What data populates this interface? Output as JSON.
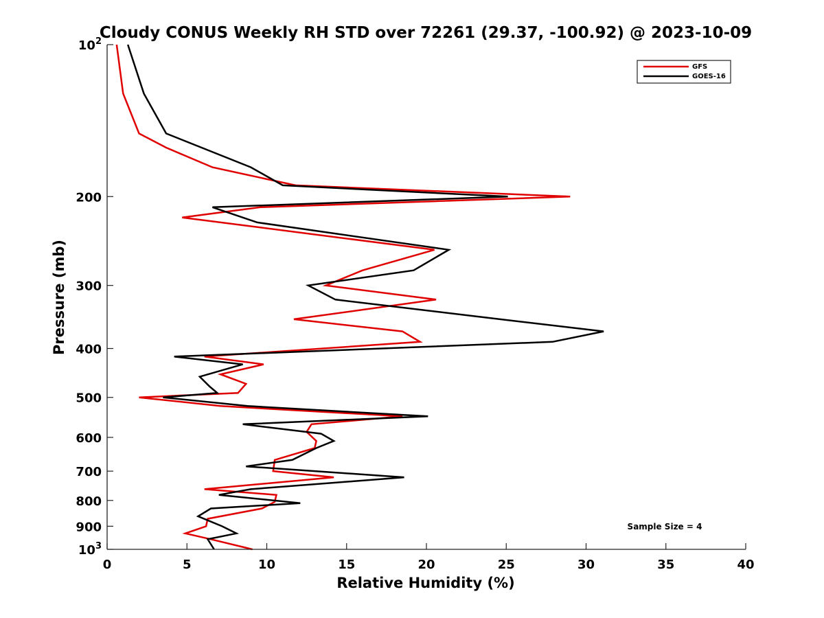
{
  "chart_data": {
    "type": "line",
    "title": "Cloudy CONUS Weekly RH STD over 72261 (29.37, -100.92) @ 2023-10-09",
    "xlabel": "Relative Humidity (%)",
    "ylabel": "Pressure (mb)",
    "xlim": [
      0,
      40
    ],
    "ylim": [
      100,
      1000
    ],
    "y_scale": "log",
    "y_reversed": true,
    "x_ticks": [
      0,
      5,
      10,
      15,
      20,
      25,
      30,
      35,
      40
    ],
    "x_tick_labels": [
      "0",
      "5",
      "10",
      "15",
      "20",
      "25",
      "30",
      "35",
      "40"
    ],
    "y_ticks": [
      100,
      200,
      300,
      400,
      500,
      600,
      700,
      800,
      900,
      1000
    ],
    "y_tick_labels": [
      {
        "base": "10",
        "exp": "2"
      },
      {
        "base": "200"
      },
      {
        "base": "300"
      },
      {
        "base": "400"
      },
      {
        "base": "500"
      },
      {
        "base": "600"
      },
      {
        "base": "700"
      },
      {
        "base": "800"
      },
      {
        "base": "900"
      },
      {
        "base": "10",
        "exp": "3"
      }
    ],
    "grid": false,
    "legend_position": "top-right",
    "annotation": "Sample Size = 4",
    "series": [
      {
        "name": "GFS",
        "color": "#e00000",
        "points": [
          [
            0.6,
            100
          ],
          [
            1.0,
            125
          ],
          [
            2.0,
            150
          ],
          [
            3.7,
            160
          ],
          [
            6.6,
            175
          ],
          [
            11.8,
            190
          ],
          [
            29.0,
            200
          ],
          [
            9.6,
            210
          ],
          [
            4.7,
            220
          ],
          [
            20.5,
            255
          ],
          [
            16.0,
            280
          ],
          [
            13.7,
            300
          ],
          [
            20.6,
            320
          ],
          [
            11.7,
            350
          ],
          [
            18.5,
            370
          ],
          [
            19.6,
            388
          ],
          [
            6.1,
            415
          ],
          [
            9.8,
            430
          ],
          [
            7.1,
            450
          ],
          [
            8.7,
            470
          ],
          [
            8.2,
            490
          ],
          [
            2.0,
            500
          ],
          [
            7.1,
            520
          ],
          [
            18.5,
            545
          ],
          [
            12.8,
            565
          ],
          [
            12.5,
            585
          ],
          [
            13.1,
            610
          ],
          [
            13.0,
            630
          ],
          [
            10.5,
            665
          ],
          [
            10.4,
            700
          ],
          [
            14.2,
            720
          ],
          [
            6.1,
            760
          ],
          [
            10.6,
            780
          ],
          [
            10.5,
            805
          ],
          [
            9.7,
            830
          ],
          [
            6.3,
            870
          ],
          [
            6.2,
            900
          ],
          [
            4.9,
            930
          ],
          [
            6.5,
            955
          ],
          [
            9.1,
            1000
          ]
        ]
      },
      {
        "name": "GOES-16",
        "color": "#000000",
        "points": [
          [
            1.3,
            100
          ],
          [
            2.3,
            125
          ],
          [
            3.7,
            150
          ],
          [
            9.0,
            175
          ],
          [
            11.0,
            190
          ],
          [
            25.1,
            200
          ],
          [
            6.6,
            210
          ],
          [
            9.4,
            225
          ],
          [
            21.4,
            255
          ],
          [
            19.2,
            280
          ],
          [
            12.6,
            300
          ],
          [
            14.3,
            320
          ],
          [
            24.6,
            350
          ],
          [
            31.1,
            370
          ],
          [
            27.9,
            388
          ],
          [
            4.2,
            415
          ],
          [
            8.5,
            430
          ],
          [
            5.8,
            455
          ],
          [
            6.4,
            475
          ],
          [
            6.9,
            490
          ],
          [
            3.5,
            500
          ],
          [
            8.8,
            520
          ],
          [
            20.1,
            545
          ],
          [
            8.5,
            565
          ],
          [
            13.4,
            590
          ],
          [
            14.2,
            610
          ],
          [
            13.1,
            630
          ],
          [
            11.6,
            665
          ],
          [
            8.7,
            685
          ],
          [
            18.6,
            720
          ],
          [
            9.0,
            760
          ],
          [
            7.0,
            780
          ],
          [
            12.1,
            810
          ],
          [
            6.5,
            830
          ],
          [
            5.7,
            860
          ],
          [
            7.2,
            900
          ],
          [
            8.1,
            930
          ],
          [
            6.3,
            955
          ],
          [
            6.7,
            1000
          ]
        ]
      }
    ]
  }
}
